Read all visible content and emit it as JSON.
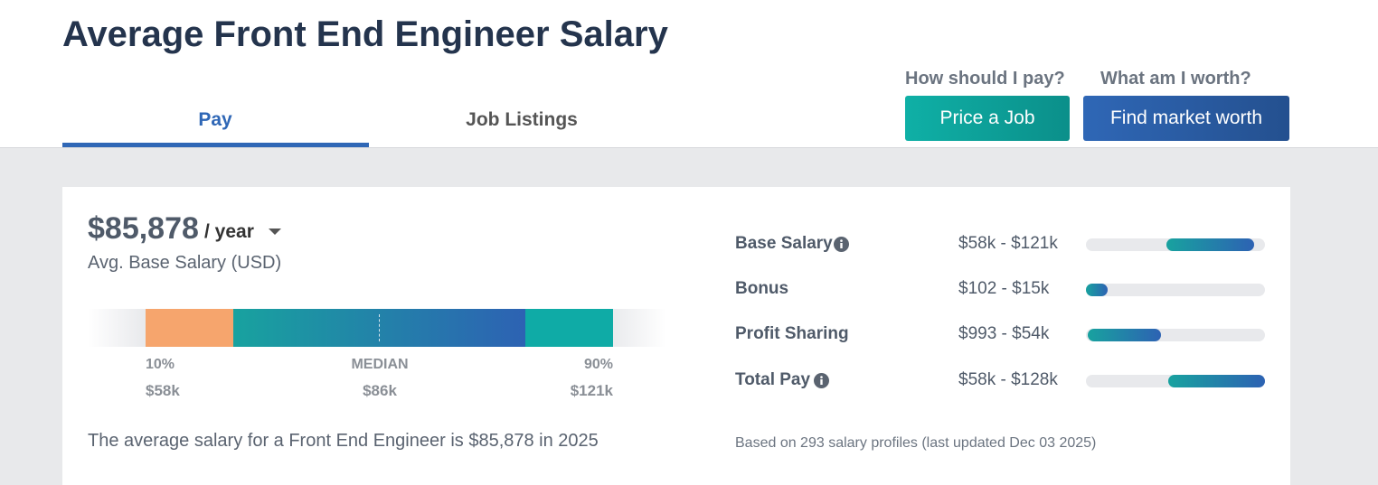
{
  "header": {
    "title": "Average Front End Engineer Salary",
    "tabs": [
      "Pay",
      "Job Listings"
    ],
    "prompts": [
      "How should I pay?",
      "What am I worth?"
    ],
    "buttons": [
      "Price a Job",
      "Find market worth"
    ]
  },
  "summary": {
    "amount": "$85,878",
    "period": "/ year",
    "caption": "Avg. Base Salary (USD)",
    "markers": [
      {
        "label": "10%",
        "value": "$58k"
      },
      {
        "label": "MEDIAN",
        "value": "$86k"
      },
      {
        "label": "90%",
        "value": "$121k"
      }
    ],
    "sentence": "The average salary for a Front End Engineer is $85,878 in 2025"
  },
  "breakdown": {
    "rows": [
      {
        "label": "Base Salary",
        "range": "$58k - $121k"
      },
      {
        "label": "Bonus",
        "range": "$102 - $15k"
      },
      {
        "label": "Profit Sharing",
        "range": "$993 - $54k"
      },
      {
        "label": "Total Pay",
        "range": "$58k - $128k"
      }
    ],
    "footnote": "Based on 293 salary profiles (last updated Dec 03 2025)"
  }
}
